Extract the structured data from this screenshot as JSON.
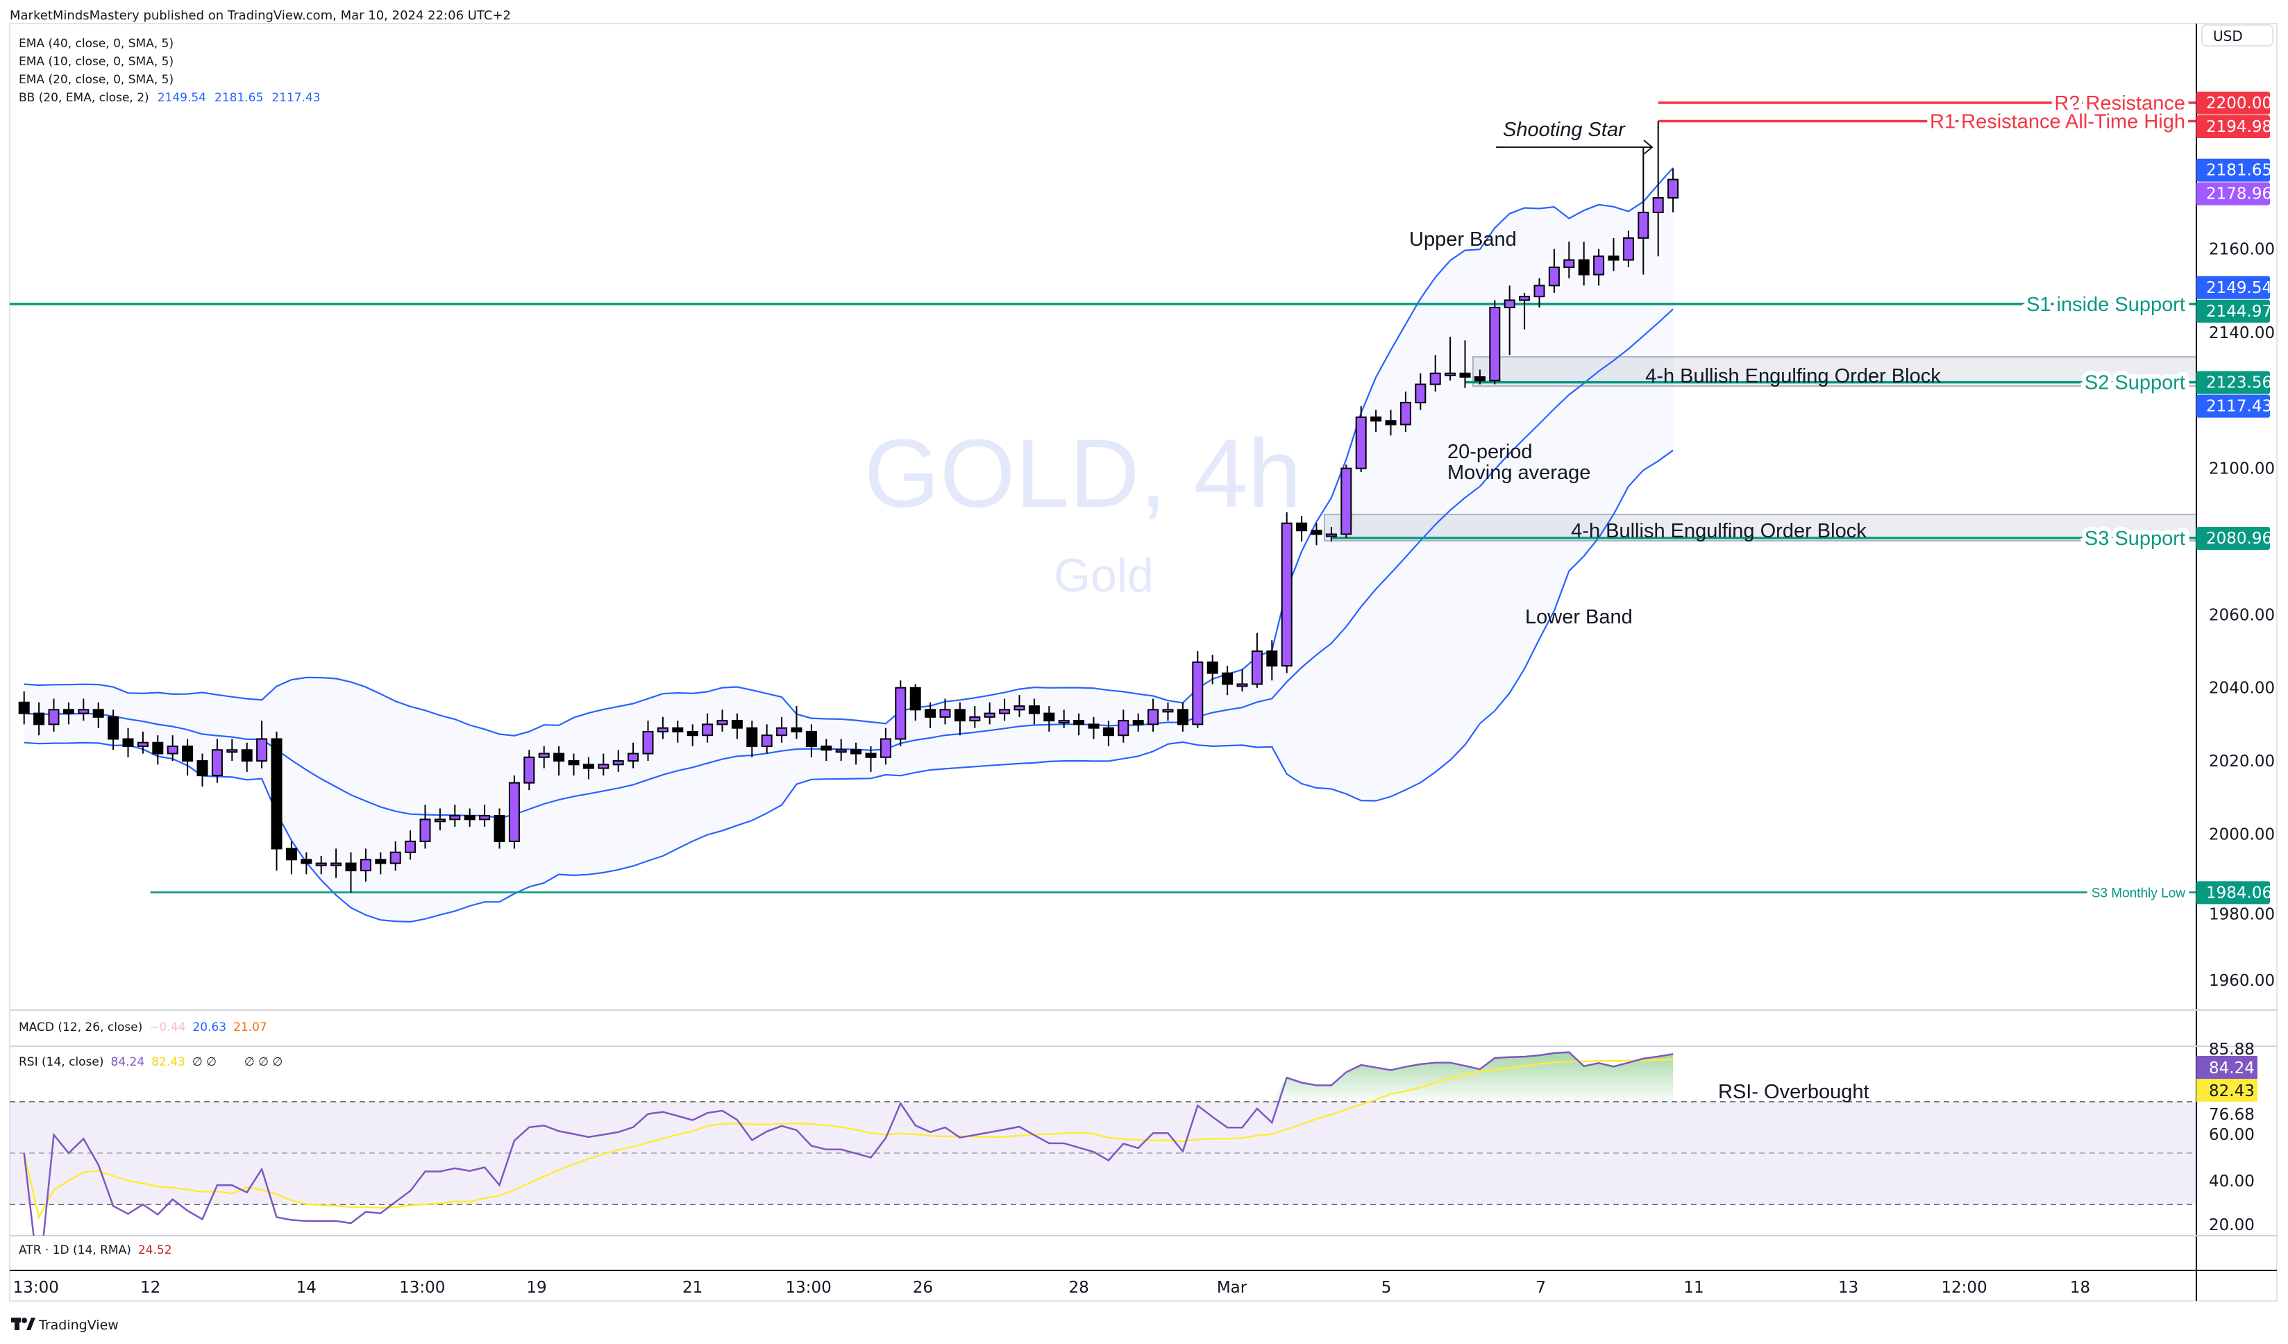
{
  "header": {
    "published": "MarketMindsMastery published on TradingView.com, Mar 10, 2024 22:06 UTC+2"
  },
  "legend": {
    "ema40": "EMA (40, close, 0, SMA, 5)",
    "ema10": "EMA (10, close, 0, SMA, 5)",
    "ema20": "EMA (20, close, 0, SMA, 5)",
    "bb": "BB (20, EMA, close, 2)",
    "bb_values": [
      "2149.54",
      "2181.65",
      "2117.43"
    ]
  },
  "watermark": {
    "symbol": "GOLD, 4h",
    "name": "Gold"
  },
  "price_axis": {
    "currency": "USD"
  },
  "macd": {
    "label": "MACD (12, 26, close)",
    "values": [
      "−0.44",
      "20.63",
      "21.07"
    ]
  },
  "rsi": {
    "label": "RSI (14, close)",
    "values": [
      "84.24",
      "82.43"
    ],
    "extras": "∅ ∅",
    "extras2": "∅ ∅ ∅",
    "axis": [
      "85.88",
      "76.68",
      "60.00",
      "40.00",
      "20.00"
    ],
    "note": "RSI- Overbought"
  },
  "atr": {
    "label": "ATR · 1D (14, RMA)",
    "value": "24.52"
  },
  "annotations": {
    "shooting_star": "Shooting Star",
    "upper_band": "Upper Band",
    "ma_line1": "20-period",
    "ma_line2": "Moving average",
    "lower_band": "Lower Band"
  },
  "branding": {
    "logo": "TradingView"
  },
  "colors": {
    "up": "#a259ff",
    "down": "#000000",
    "bb": "#2962ff",
    "resistance": "#f23645",
    "support": "#089981",
    "rsi": "#7e57c2",
    "rsi_ma": "#ffeb3b"
  },
  "chart_data": {
    "type": "candlestick",
    "symbol": "GOLD",
    "timeframe": "4h",
    "ylim": [
      1950,
      2210
    ],
    "grid": false,
    "price_axis": {
      "ticks": [
        2160,
        2140,
        2100,
        2060,
        2040,
        2020,
        2000,
        1980,
        1960
      ],
      "tick_labels": [
        "2160.00",
        "2140.00",
        "2100.00",
        "2060.00",
        "2040.00",
        "2020.00",
        "2000.00",
        "1980.00",
        "1960.00"
      ]
    },
    "time_axis": [
      {
        "label": "13:00",
        "bar": 0.8
      },
      {
        "label": "12",
        "bar": 8.5
      },
      {
        "label": "14",
        "bar": 19
      },
      {
        "label": "13:00",
        "bar": 26.8
      },
      {
        "label": "19",
        "bar": 34.5
      },
      {
        "label": "21",
        "bar": 45
      },
      {
        "label": "13:00",
        "bar": 52.8
      },
      {
        "label": "26",
        "bar": 60.5
      },
      {
        "label": "28",
        "bar": 71
      },
      {
        "label": "Mar",
        "bar": 81.3
      },
      {
        "label": "5",
        "bar": 91.7
      },
      {
        "label": "7",
        "bar": 102.1
      },
      {
        "label": "11",
        "bar": 112.4
      },
      {
        "label": "13",
        "bar": 122.8
      },
      {
        "label": "12:00",
        "bar": 130.6
      },
      {
        "label": "18",
        "bar": 138.4
      }
    ],
    "candles_format": "[open, high, low, close]",
    "candles": [
      [
        2036,
        2039,
        2030,
        2033
      ],
      [
        2033,
        2036,
        2027,
        2030
      ],
      [
        2030,
        2037,
        2028,
        2034
      ],
      [
        2034,
        2036,
        2030,
        2033
      ],
      [
        2033,
        2037,
        2031,
        2034
      ],
      [
        2034,
        2036,
        2029,
        2032
      ],
      [
        2032,
        2034,
        2023,
        2026
      ],
      [
        2026,
        2029,
        2021,
        2024
      ],
      [
        2024,
        2028,
        2022,
        2025
      ],
      [
        2025,
        2027,
        2019,
        2022
      ],
      [
        2022,
        2027,
        2020,
        2024
      ],
      [
        2024,
        2026,
        2016,
        2020
      ],
      [
        2020,
        2022,
        2013,
        2016
      ],
      [
        2016,
        2026,
        2014,
        2023
      ],
      [
        2023,
        2026,
        2020,
        2023
      ],
      [
        2023,
        2025,
        2017,
        2020
      ],
      [
        2020,
        2031,
        2018,
        2026
      ],
      [
        2026,
        2028,
        1990,
        1996
      ],
      [
        1996,
        1998,
        1989,
        1993
      ],
      [
        1993,
        1995,
        1989,
        1992
      ],
      [
        1992,
        1994,
        1989,
        1992
      ],
      [
        1992,
        1996,
        1988,
        1992
      ],
      [
        1992,
        1995,
        1984,
        1990
      ],
      [
        1990,
        1996,
        1987,
        1993
      ],
      [
        1993,
        1995,
        1989,
        1992
      ],
      [
        1992,
        1998,
        1990,
        1995
      ],
      [
        1995,
        2001,
        1993,
        1998
      ],
      [
        1998,
        2008,
        1996,
        2004
      ],
      [
        2004,
        2007,
        2001,
        2004
      ],
      [
        2004,
        2008,
        2002,
        2005
      ],
      [
        2005,
        2007,
        2002,
        2004
      ],
      [
        2004,
        2008,
        2002,
        2005
      ],
      [
        2005,
        2007,
        1996,
        1998
      ],
      [
        1998,
        2016,
        1996,
        2014
      ],
      [
        2014,
        2023,
        2012,
        2021
      ],
      [
        2021,
        2024,
        2018,
        2022
      ],
      [
        2022,
        2024,
        2016,
        2020
      ],
      [
        2020,
        2022,
        2016,
        2019
      ],
      [
        2019,
        2021,
        2015,
        2018
      ],
      [
        2018,
        2022,
        2016,
        2019
      ],
      [
        2019,
        2023,
        2017,
        2020
      ],
      [
        2020,
        2025,
        2018,
        2022
      ],
      [
        2022,
        2031,
        2020,
        2028
      ],
      [
        2028,
        2032,
        2026,
        2029
      ],
      [
        2029,
        2031,
        2025,
        2028
      ],
      [
        2028,
        2030,
        2024,
        2027
      ],
      [
        2027,
        2033,
        2025,
        2030
      ],
      [
        2030,
        2034,
        2028,
        2031
      ],
      [
        2031,
        2033,
        2026,
        2029
      ],
      [
        2029,
        2031,
        2021,
        2024
      ],
      [
        2024,
        2030,
        2022,
        2027
      ],
      [
        2027,
        2032,
        2025,
        2029
      ],
      [
        2029,
        2035,
        2026,
        2028
      ],
      [
        2028,
        2030,
        2021,
        2024
      ],
      [
        2024,
        2026,
        2020,
        2023
      ],
      [
        2023,
        2026,
        2020,
        2023
      ],
      [
        2023,
        2025,
        2019,
        2022
      ],
      [
        2022,
        2024,
        2017,
        2021
      ],
      [
        2021,
        2029,
        2019,
        2026
      ],
      [
        2026,
        2042,
        2024,
        2040
      ],
      [
        2040,
        2041,
        2031,
        2034
      ],
      [
        2034,
        2036,
        2029,
        2032
      ],
      [
        2032,
        2037,
        2030,
        2034
      ],
      [
        2034,
        2036,
        2027,
        2031
      ],
      [
        2031,
        2035,
        2029,
        2032
      ],
      [
        2032,
        2036,
        2030,
        2033
      ],
      [
        2033,
        2037,
        2031,
        2034
      ],
      [
        2034,
        2038,
        2032,
        2035
      ],
      [
        2035,
        2037,
        2030,
        2033
      ],
      [
        2033,
        2035,
        2028,
        2031
      ],
      [
        2031,
        2034,
        2029,
        2031
      ],
      [
        2031,
        2033,
        2027,
        2030
      ],
      [
        2030,
        2032,
        2026,
        2029
      ],
      [
        2029,
        2031,
        2024,
        2027
      ],
      [
        2027,
        2034,
        2025,
        2031
      ],
      [
        2031,
        2033,
        2028,
        2030
      ],
      [
        2030,
        2037,
        2028,
        2034
      ],
      [
        2034,
        2036,
        2031,
        2034
      ],
      [
        2034,
        2036,
        2028,
        2030
      ],
      [
        2030,
        2050,
        2029,
        2047
      ],
      [
        2047,
        2049,
        2041,
        2044
      ],
      [
        2044,
        2046,
        2038,
        2041
      ],
      [
        2041,
        2045,
        2039,
        2041
      ],
      [
        2041,
        2055,
        2040,
        2050
      ],
      [
        2050,
        2053,
        2042,
        2046
      ],
      [
        2046,
        2088,
        2044,
        2085
      ],
      [
        2085,
        2087,
        2080,
        2083
      ],
      [
        2083,
        2085,
        2079,
        2082
      ],
      [
        2082,
        2084,
        2080,
        2082
      ],
      [
        2082,
        2101,
        2081,
        2100
      ],
      [
        2100,
        2117,
        2099,
        2114
      ],
      [
        2114,
        2116,
        2110,
        2113
      ],
      [
        2113,
        2116,
        2109,
        2112
      ],
      [
        2112,
        2121,
        2110,
        2118
      ],
      [
        2118,
        2126,
        2116,
        2123
      ],
      [
        2123,
        2131,
        2121,
        2126
      ],
      [
        2126,
        2136,
        2124,
        2126
      ],
      [
        2126,
        2135,
        2122,
        2125
      ],
      [
        2125,
        2127,
        2123,
        2124
      ],
      [
        2124,
        2146,
        2123,
        2144
      ],
      [
        2144,
        2150,
        2131,
        2146
      ],
      [
        2146,
        2148,
        2138,
        2147
      ],
      [
        2147,
        2152,
        2144,
        2150
      ],
      [
        2150,
        2160,
        2148,
        2155
      ],
      [
        2155,
        2162,
        2152,
        2157
      ],
      [
        2157,
        2162,
        2150,
        2153
      ],
      [
        2153,
        2160,
        2150,
        2158
      ],
      [
        2158,
        2163,
        2154,
        2157
      ],
      [
        2157,
        2165,
        2155,
        2163
      ],
      [
        2163,
        2188,
        2153,
        2170
      ],
      [
        2170,
        2194.98,
        2158,
        2174
      ],
      [
        2174,
        2182,
        2170,
        2179
      ]
    ],
    "levels": [
      {
        "label": "R2 Resistance",
        "price": 2200.0,
        "from_bar": 110,
        "kind": "resistance"
      },
      {
        "label": "R1 Resistance  All-Time High",
        "price": 2194.98,
        "from_bar": 110,
        "kind": "resistance"
      },
      {
        "label": "S1 inside Support",
        "price": 2144.97,
        "from_bar": -1,
        "kind": "support"
      },
      {
        "label": "S2 Support",
        "price": 2123.56,
        "from_bar": 97,
        "kind": "support"
      },
      {
        "label": "S3 Support",
        "price": 2080.96,
        "from_bar": 88,
        "kind": "support"
      },
      {
        "label": "S3 Monthly Low",
        "price": 1984.06,
        "from_bar": 8.5,
        "kind": "support",
        "small": true
      }
    ],
    "order_blocks": [
      {
        "label": "4-h Bullish Engulfing Order Block",
        "top": 2130.5,
        "bottom": 2122.5,
        "from_bar": 98
      },
      {
        "label": "4-h Bullish Engulfing Order Block",
        "top": 2087.4,
        "bottom": 2080.2,
        "from_bar": 88
      }
    ],
    "price_badges": [
      {
        "value": "2200.00",
        "price": 2200.0,
        "color": "#f23645"
      },
      {
        "value": "2194.98",
        "price": 2194.98,
        "color": "#f23645"
      },
      {
        "value": "2181.65",
        "price": 2181.65,
        "color": "#2962ff"
      },
      {
        "value": "2178.96",
        "price": 2178.96,
        "color": "#a259ff"
      },
      {
        "value": "2149.54",
        "price": 2149.54,
        "color": "#2962ff"
      },
      {
        "value": "2144.97",
        "price": 2144.97,
        "color": "#089981"
      },
      {
        "value": "2123.56",
        "price": 2123.56,
        "color": "#089981"
      },
      {
        "value": "2117.43",
        "price": 2117.43,
        "color": "#2962ff"
      },
      {
        "value": "2080.96",
        "price": 2080.96,
        "color": "#089981"
      },
      {
        "value": "1984.06",
        "price": 1984.06,
        "color": "#089981"
      }
    ],
    "bollinger": {
      "length": 20,
      "basis": "EMA",
      "mult": 2
    },
    "rsi": {
      "length": 14,
      "levels": [
        70,
        50,
        30
      ]
    }
  }
}
